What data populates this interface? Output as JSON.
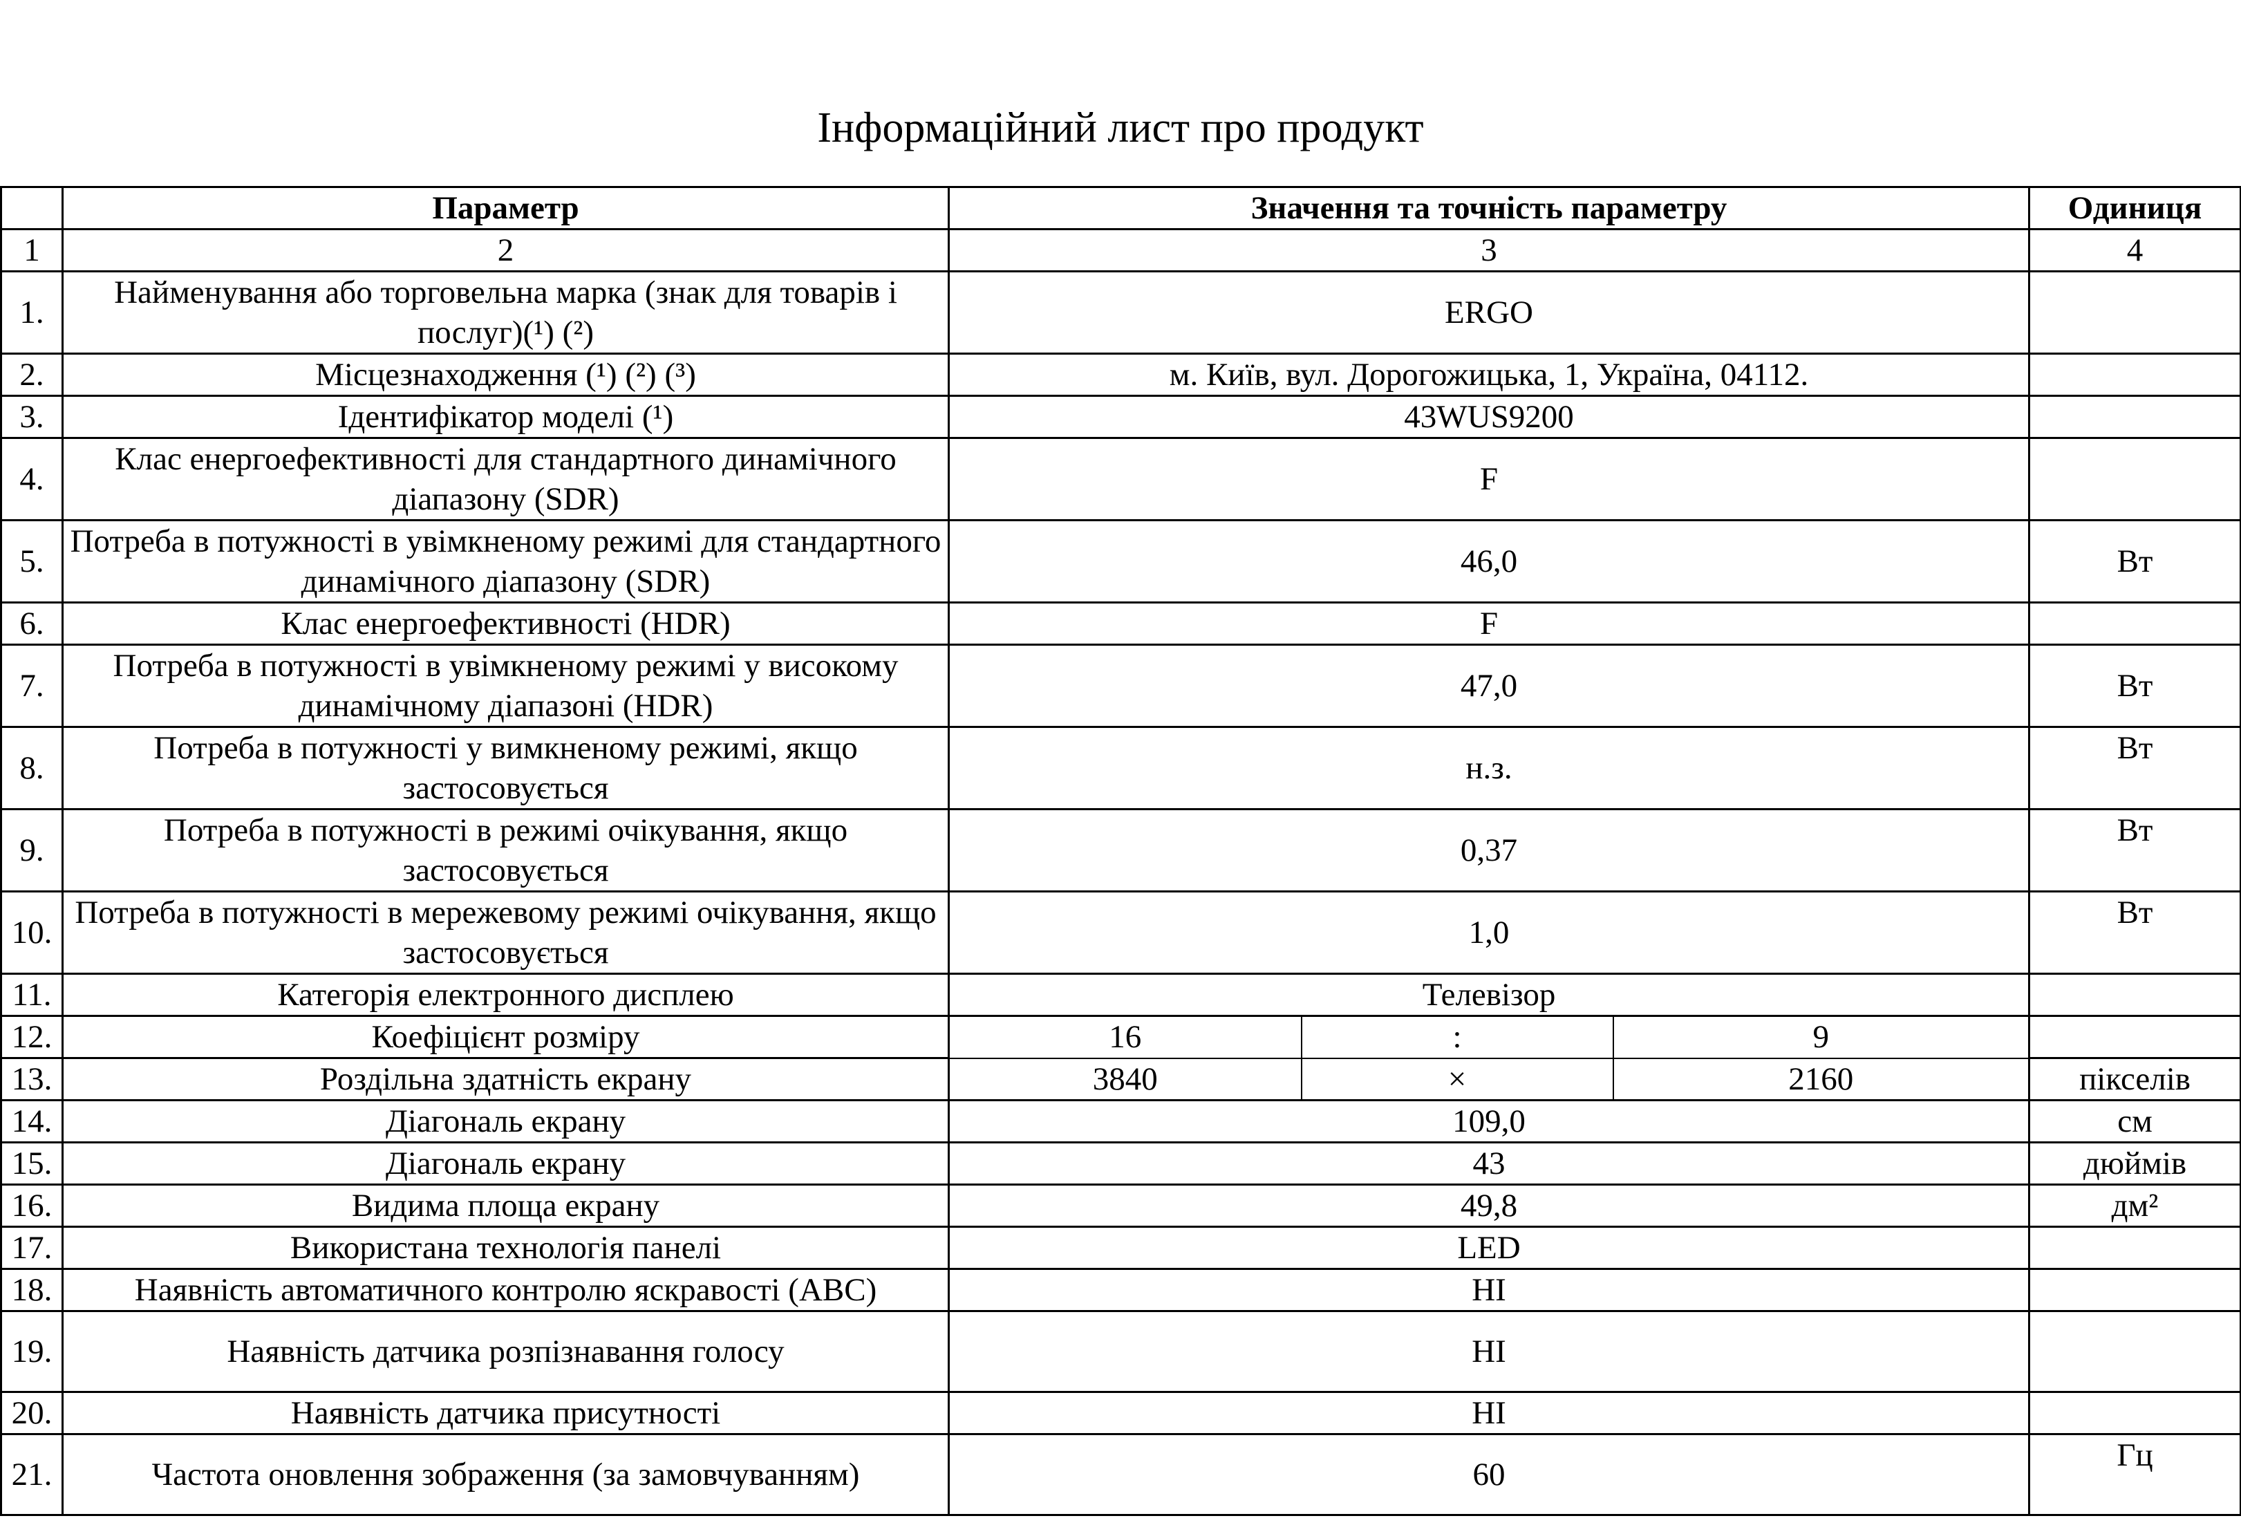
{
  "title": "Інформаційний лист про продукт",
  "header": {
    "no": "",
    "param": "Параметр",
    "value": "Значення та точність параметру",
    "unit": "Одиниця"
  },
  "numbering": {
    "c1": "1",
    "c2": "2",
    "c3": "3",
    "c4": "4"
  },
  "rows": [
    {
      "no": "1.",
      "param": "Найменування або торговельна марка (знак для товарів і послуг)(¹) (²)",
      "value": "ERGO",
      "unit": ""
    },
    {
      "no": "2.",
      "param": "Місцезнаходження (¹) (²) (³)",
      "value": "м. Київ, вул. Дорогожицька, 1, Україна, 04112.",
      "unit": ""
    },
    {
      "no": "3.",
      "param": "Ідентифікатор моделі (¹)",
      "value": "43WUS9200",
      "unit": ""
    },
    {
      "no": "4.",
      "param": "Клас енергоефективності для стандартного динамічного діапазону (SDR)",
      "value": "F",
      "unit": ""
    },
    {
      "no": "5.",
      "param": "Потреба в потужності в увімкненому режимі для стандартного динамічного діапазону (SDR)",
      "value": "46,0",
      "unit": "Вт"
    },
    {
      "no": "6.",
      "param": "Клас енергоефективності (HDR)",
      "value": "F",
      "unit": ""
    },
    {
      "no": "7.",
      "param": "Потреба в потужності в увімкненому режимі у високому динамічному діапазоні (HDR)",
      "value": "47,0",
      "unit": "Вт"
    },
    {
      "no": "8.",
      "param": "Потреба в потужності у вимкненому режимі, якщо застосовується",
      "value": "н.з.",
      "unit": "Вт"
    },
    {
      "no": "9.",
      "param": "Потреба в потужності в режимі очікування, якщо застосовується",
      "value": "0,37",
      "unit": "Вт"
    },
    {
      "no": "10.",
      "param": "Потреба в потужності в мережевому режимі очікування, якщо застосовується",
      "value": "1,0",
      "unit": "Вт"
    },
    {
      "no": "11.",
      "param": "Категорія електронного дисплею",
      "value": "Телевізор",
      "unit": ""
    },
    {
      "no": "12.",
      "param": "Коефіцієнт розміру",
      "v1": "16",
      "v2": ":",
      "v3": "9",
      "unit": ""
    },
    {
      "no": "13.",
      "param": "Роздільна здатність екрану",
      "v1": "3840",
      "v2": "×",
      "v3": "2160",
      "unit": "пікселів"
    },
    {
      "no": "14.",
      "param": "Діагональ екрану",
      "value": "109,0",
      "unit": "см"
    },
    {
      "no": "15.",
      "param": "Діагональ екрану",
      "value": "43",
      "unit": "дюймів"
    },
    {
      "no": "16.",
      "param": "Видима площа екрану",
      "value": "49,8",
      "unit": "дм²"
    },
    {
      "no": "17.",
      "param": "Використана технологія панелі",
      "value": "LED",
      "unit": ""
    },
    {
      "no": "18.",
      "param": "Наявність автоматичного контролю яскравості (ABC)",
      "value": "НІ",
      "unit": ""
    },
    {
      "no": "19.",
      "param": "Наявність датчика розпізнавання голосу",
      "value": "НІ",
      "unit": ""
    },
    {
      "no": "20.",
      "param": "Наявність датчика присутності",
      "value": "НІ",
      "unit": ""
    },
    {
      "no": "21.",
      "param": "Частота оновлення зображення (за замовчуванням)",
      "value": "60",
      "unit": "Гц"
    }
  ]
}
